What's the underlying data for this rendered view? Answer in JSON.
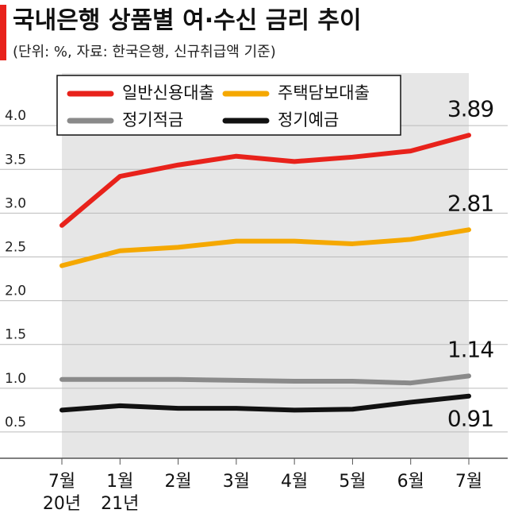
{
  "chart_data": {
    "type": "line",
    "title": "국내은행 상품별 여·수신 금리 추이",
    "subtitle": "(단위: %, 자료: 한국은행, 신규취급액 기준)",
    "categories": [
      "7월",
      "1월",
      "2월",
      "3월",
      "4월",
      "5월",
      "6월",
      "7월"
    ],
    "category_years": [
      "20년",
      "21년",
      null,
      null,
      null,
      null,
      null,
      null
    ],
    "ylim": [
      0.2,
      4.6
    ],
    "yticks": [
      0.5,
      {
        "value": 1,
        "label": "1.0"
      },
      1.5,
      {
        "value": 2,
        "label": "2.0"
      },
      2.5,
      {
        "value": 3,
        "label": "3.0"
      },
      3.5,
      {
        "value": 4,
        "label": "4.0"
      }
    ],
    "grid": true,
    "series": [
      {
        "name": "일반신용대출",
        "color": "#e8221b",
        "label_position": "above",
        "values": [
          2.86,
          3.42,
          3.55,
          3.65,
          3.59,
          3.64,
          3.71,
          3.89
        ],
        "value_labels": [
          null,
          null,
          null,
          null,
          null,
          null,
          null,
          "3.89"
        ]
      },
      {
        "name": "주택담보대출",
        "color": "#f5a800",
        "label_position": "above",
        "values": [
          2.4,
          2.57,
          2.61,
          2.68,
          2.68,
          2.65,
          2.7,
          2.81
        ],
        "value_labels": [
          null,
          null,
          null,
          null,
          null,
          null,
          null,
          "2.81"
        ]
      },
      {
        "name": "정기적금",
        "color": "#8a8a8a",
        "label_position": "above",
        "values": [
          1.1,
          1.1,
          1.1,
          1.09,
          1.08,
          1.08,
          1.06,
          1.14
        ],
        "value_labels": [
          null,
          null,
          null,
          null,
          null,
          null,
          null,
          "1.14"
        ]
      },
      {
        "name": "정기예금",
        "color": "#111111",
        "label_position": "below",
        "values": [
          0.75,
          0.8,
          0.77,
          0.77,
          0.75,
          0.76,
          0.84,
          0.91
        ],
        "value_labels": [
          null,
          null,
          null,
          null,
          null,
          null,
          null,
          "0.91"
        ]
      }
    ]
  }
}
